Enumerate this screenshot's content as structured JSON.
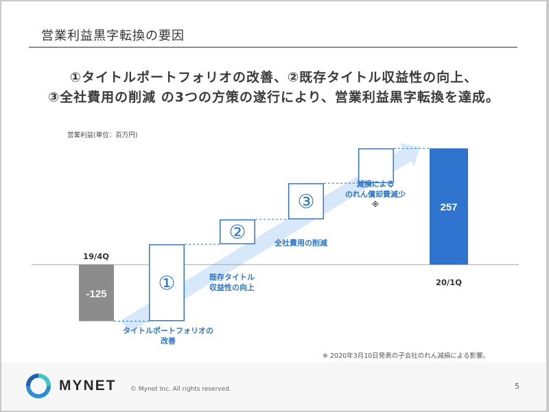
{
  "slide": {
    "title": "営業利益黒字転換の要因",
    "headline_line1": "①タイトルポートフォリオの改善、②既存タイトル収益性の向上、",
    "headline_line2": "③全社費用の削減 の3つの方策の遂行により、営業利益黒字転換を達成。",
    "footnote": "※ 2020年3月10日発表の子会社のれん減損による影響。",
    "page_number": "5"
  },
  "footer": {
    "brand": "MYNET",
    "copyright": "© Mynet Inc. All rights reserved."
  },
  "colors": {
    "negative_bar": "#8c8c8c",
    "positive_bar": "#2e74cf",
    "step_border": "#2e74cf",
    "arrow": "#d6e8f9",
    "label_text": "#2e74cf"
  },
  "chart_data": {
    "type": "bar",
    "subtype": "waterfall",
    "unit_label": "営業利益(単位：百万円)",
    "categories": [
      "19/4Q",
      "①",
      "②",
      "③",
      "減損による のれん償却費減少 ※",
      "20/1Q"
    ],
    "values": [
      -125,
      170,
      55,
      80,
      77,
      257
    ],
    "bar_labels": [
      "-125",
      "",
      "",
      "",
      "",
      "257"
    ],
    "period_labels": [
      "19/4Q",
      "",
      "",
      "",
      "",
      "20/1Q"
    ],
    "step_symbols": [
      "",
      "①",
      "②",
      "③",
      "",
      ""
    ],
    "step_descriptions": [
      [],
      [
        "タイトルポートフォリオの",
        "改善"
      ],
      [
        "既存タイトル",
        "収益性の向上"
      ],
      [
        "全社費用の削減"
      ],
      [
        "減損による",
        "のれん償却費減少",
        "※"
      ],
      []
    ]
  }
}
